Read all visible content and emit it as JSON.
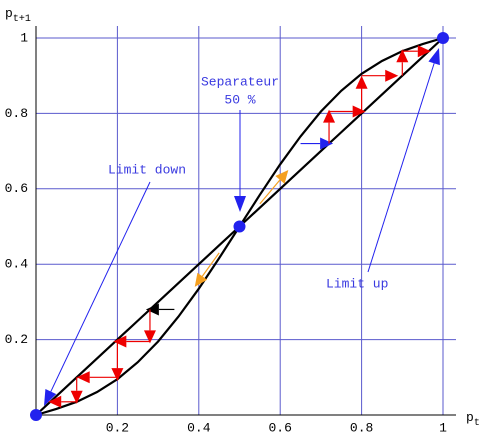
{
  "chart_data": {
    "type": "line",
    "x_label": {
      "base": "p",
      "sub": "t"
    },
    "y_label": {
      "base": "p",
      "sub": "t+1"
    },
    "xlim": [
      0,
      1
    ],
    "ylim": [
      0,
      1
    ],
    "xticks": [
      0.2,
      0.4,
      0.6,
      0.8,
      1
    ],
    "yticks": [
      0.2,
      0.4,
      0.6,
      0.8,
      1
    ],
    "grid": true,
    "grid_color": "#5a5acd",
    "x": [
      0,
      0.05,
      0.1,
      0.15,
      0.2,
      0.25,
      0.3,
      0.35,
      0.4,
      0.45,
      0.5,
      0.55,
      0.6,
      0.65,
      0.7,
      0.75,
      0.8,
      0.85,
      0.9,
      0.95,
      1
    ],
    "series": [
      {
        "color": "#000000",
        "values": [
          0,
          0.05,
          0.1,
          0.15,
          0.2,
          0.25,
          0.3,
          0.35,
          0.4,
          0.45,
          0.5,
          0.55,
          0.6,
          0.65,
          0.7,
          0.75,
          0.8,
          0.85,
          0.9,
          0.95,
          1
        ]
      },
      {
        "color": "#000000",
        "values": [
          0,
          0.016,
          0.035,
          0.061,
          0.095,
          0.14,
          0.195,
          0.261,
          0.335,
          0.416,
          0.5,
          0.584,
          0.665,
          0.739,
          0.805,
          0.86,
          0.905,
          0.939,
          0.965,
          0.984,
          1
        ]
      }
    ],
    "points": {
      "x": [
        0,
        0.5,
        1
      ],
      "y": [
        0,
        0.5,
        1
      ],
      "color": "#2222ee"
    },
    "arrows": [
      {
        "from": [
          0.34,
          0.28
        ],
        "to": [
          0.27,
          0.28
        ],
        "color": "#000000"
      },
      {
        "from": [
          0.28,
          0.28
        ],
        "to": [
          0.28,
          0.19
        ],
        "color": "#ee0000"
      },
      {
        "from": [
          0.28,
          0.195
        ],
        "to": [
          0.19,
          0.195
        ],
        "color": "#ee0000"
      },
      {
        "from": [
          0.2,
          0.2
        ],
        "to": [
          0.2,
          0.09
        ],
        "color": "#ee0000"
      },
      {
        "from": [
          0.2,
          0.1
        ],
        "to": [
          0.1,
          0.1
        ],
        "color": "#ee0000"
      },
      {
        "from": [
          0.1,
          0.1
        ],
        "to": [
          0.1,
          0.03
        ],
        "color": "#ee0000"
      },
      {
        "from": [
          0.1,
          0.035
        ],
        "to": [
          0.03,
          0.035
        ],
        "color": "#ee0000"
      },
      {
        "from": [
          0.65,
          0.72
        ],
        "to": [
          0.73,
          0.72
        ],
        "color": "#2222ee"
      },
      {
        "from": [
          0.72,
          0.72
        ],
        "to": [
          0.72,
          0.81
        ],
        "color": "#ee0000"
      },
      {
        "from": [
          0.72,
          0.805
        ],
        "to": [
          0.81,
          0.805
        ],
        "color": "#ee0000"
      },
      {
        "from": [
          0.8,
          0.8
        ],
        "to": [
          0.8,
          0.9
        ],
        "color": "#ee0000"
      },
      {
        "from": [
          0.8,
          0.9
        ],
        "to": [
          0.89,
          0.9
        ],
        "color": "#ee0000"
      },
      {
        "from": [
          0.9,
          0.9
        ],
        "to": [
          0.9,
          0.97
        ],
        "color": "#ee0000"
      },
      {
        "from": [
          0.9,
          0.965
        ],
        "to": [
          0.97,
          0.965
        ],
        "color": "#ee0000"
      },
      {
        "from": [
          0.55,
          0.56
        ],
        "to": [
          0.62,
          0.65
        ],
        "color": "#f5a020"
      },
      {
        "from": [
          0.45,
          0.43
        ],
        "to": [
          0.39,
          0.34
        ],
        "color": "#f5a020"
      }
    ],
    "annotations": [
      "Separateur",
      "50 %",
      "Limit down",
      "Limit up"
    ]
  }
}
